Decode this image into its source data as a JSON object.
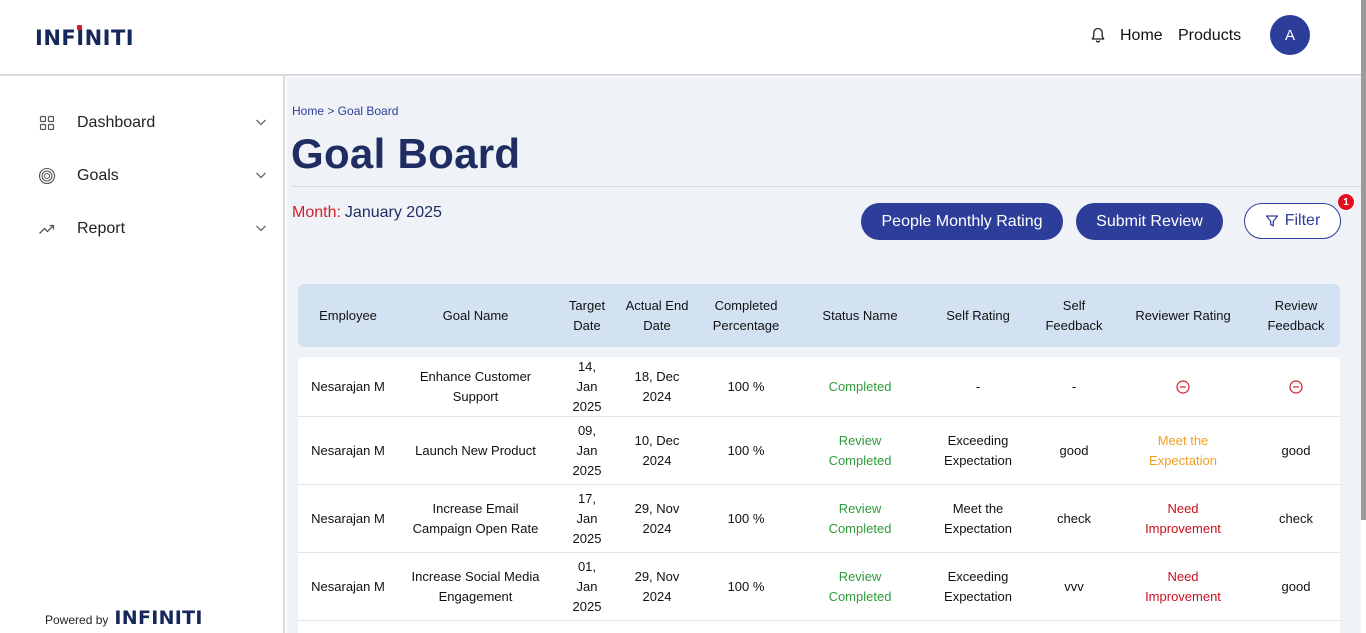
{
  "brand": {
    "logo_text": "INFINITI",
    "powered_by": "Powered by"
  },
  "header": {
    "nav": [
      "Home",
      "Products"
    ],
    "avatar_initial": "A"
  },
  "sidebar": {
    "items": [
      {
        "label": "Dashboard",
        "icon": "grid-icon"
      },
      {
        "label": "Goals",
        "icon": "target-icon"
      },
      {
        "label": "Report",
        "icon": "trend-up-icon"
      }
    ]
  },
  "breadcrumb": "Home > Goal Board",
  "page_title": "Goal Board",
  "month": {
    "label": "Month:",
    "value": "January 2025"
  },
  "actions": {
    "people_rating": "People Monthly Rating",
    "submit_review": "Submit Review",
    "filter": "Filter",
    "filter_badge": "1"
  },
  "table": {
    "columns": [
      "Employee",
      "Goal Name",
      "Target Date",
      "Actual End Date",
      "Completed Percentage",
      "Status Name",
      "Self Rating",
      "Self Feedback",
      "Reviewer Rating",
      "Review Feedback"
    ],
    "rows": [
      [
        "Nesarajan M",
        "Enhance Customer Support",
        "14, Jan 2025",
        "18, Dec 2024",
        "100 %",
        "Completed",
        "-",
        "-",
        "",
        ""
      ],
      [
        "Nesarajan M",
        "Launch New Product",
        "09, Jan 2025",
        "10, Dec 2024",
        "100 %",
        "Review Completed",
        "Exceeding Expectation",
        "good",
        "Meet the Expectation",
        "good"
      ],
      [
        "Nesarajan M",
        "Increase Email Campaign Open Rate",
        "17, Jan 2025",
        "29, Nov 2024",
        "100 %",
        "Review Completed",
        "Meet the Expectation",
        "check",
        "Need Improvement",
        "check"
      ],
      [
        "Nesarajan M",
        "Increase Social Media Engagement",
        "01, Jan 2025",
        "29, Nov 2024",
        "100 %",
        "Review Completed",
        "Exceeding Expectation",
        "vvv",
        "Need Improvement",
        "good"
      ]
    ]
  },
  "colors": {
    "primary": "#2d3d9a",
    "title": "#1f2d62",
    "status_green": "#2f9b3a",
    "meet_orange": "#f0a020",
    "need_red": "#c8101e",
    "badge_red": "#e10f1f"
  }
}
